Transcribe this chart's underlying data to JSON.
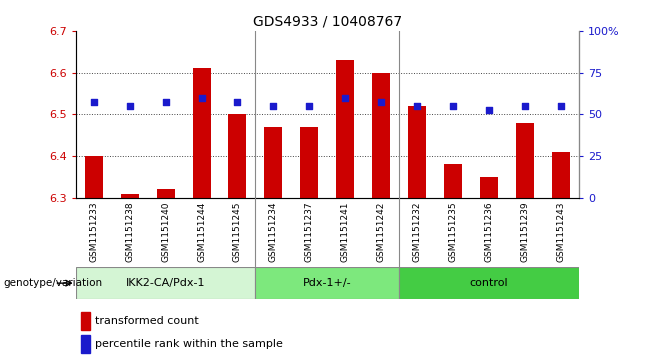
{
  "title": "GDS4933 / 10408767",
  "samples": [
    "GSM1151233",
    "GSM1151238",
    "GSM1151240",
    "GSM1151244",
    "GSM1151245",
    "GSM1151234",
    "GSM1151237",
    "GSM1151241",
    "GSM1151242",
    "GSM1151232",
    "GSM1151235",
    "GSM1151236",
    "GSM1151239",
    "GSM1151243"
  ],
  "bar_values": [
    6.4,
    6.31,
    6.32,
    6.61,
    6.5,
    6.47,
    6.47,
    6.63,
    6.6,
    6.52,
    6.38,
    6.35,
    6.48,
    6.41
  ],
  "bar_base": 6.3,
  "dot_values": [
    6.53,
    6.52,
    6.53,
    6.54,
    6.53,
    6.52,
    6.52,
    6.54,
    6.53,
    6.52,
    6.52,
    6.51,
    6.52,
    6.52
  ],
  "bar_color": "#cc0000",
  "dot_color": "#1a1acc",
  "ylim_left": [
    6.3,
    6.7
  ],
  "ylim_right": [
    0,
    100
  ],
  "yticks_left": [
    6.3,
    6.4,
    6.5,
    6.6,
    6.7
  ],
  "yticks_right": [
    0,
    25,
    50,
    75,
    100
  ],
  "ytick_labels_right": [
    "0",
    "25",
    "50",
    "75",
    "100%"
  ],
  "groups": [
    {
      "label": "IKK2-CA/Pdx-1",
      "start": 0,
      "end": 5,
      "color": "#d4f5d4"
    },
    {
      "label": "Pdx-1+/-",
      "start": 5,
      "end": 9,
      "color": "#7de87d"
    },
    {
      "label": "control",
      "start": 9,
      "end": 14,
      "color": "#44cc44"
    }
  ],
  "xtick_bg_color": "#d8d8d8",
  "group_label_prefix": "genotype/variation",
  "legend_bar_label": "transformed count",
  "legend_dot_label": "percentile rank within the sample",
  "left_tick_color": "#cc0000",
  "right_tick_color": "#1a1acc",
  "grid_linestyle": ":",
  "grid_color": "#444444",
  "grid_linewidth": 0.7,
  "bar_width": 0.5,
  "sep_color": "#888888"
}
